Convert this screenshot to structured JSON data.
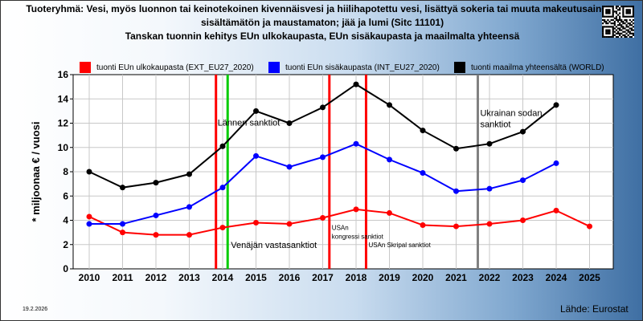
{
  "header": {
    "title_line1": "Tuoteryhmä: Vesi, myös luonnon tai keinotekoinen kivennäisvesi ja hiilihapotettu vesi, lisättyä sokeria tai muuta makeutusainetta",
    "title_line2": "sisältämätön ja maustamaton; jää ja lumi (Sitc 11101)",
    "title_line3": "Tanskan tuonnin kehitys EUn ulkokaupasta, EUn sisäkaupasta ja maailmalta yhteensä"
  },
  "legend": [
    {
      "label": "tuonti EUn ulkokaupasta (EXT_EU27_2020)",
      "color": "#ff0000"
    },
    {
      "label": "tuonti EUn sisäkaupasta (INT_EU27_2020)",
      "color": "#0000ff"
    },
    {
      "label": "tuonti maailma yhteensältä (WORLD)",
      "color": "#000000"
    }
  ],
  "footer": {
    "date": "19.2.2026",
    "source": "Lähde: Eurostat"
  },
  "chart_data": {
    "type": "line",
    "ylabel": "* miljoonaa € / vuosi",
    "ylim": [
      0,
      16
    ],
    "yticks": [
      0,
      2,
      4,
      6,
      8,
      10,
      12,
      14,
      16
    ],
    "categories": [
      "2010",
      "2011",
      "2012",
      "2013",
      "2014",
      "2015",
      "2016",
      "2017",
      "2018",
      "2019",
      "2020",
      "2021",
      "2022",
      "2023",
      "2024",
      "2025"
    ],
    "grid": true,
    "legend_position": "top",
    "series": [
      {
        "name": "tuonti EUn ulkokaupasta (EXT_EU27_2020)",
        "color": "#ff0000",
        "values": [
          4.3,
          3.0,
          2.8,
          2.8,
          3.4,
          3.8,
          3.7,
          4.2,
          4.9,
          4.6,
          3.6,
          3.5,
          3.7,
          4.0,
          4.8,
          3.5
        ]
      },
      {
        "name": "tuonti EUn sisäkaupasta (INT_EU27_2020)",
        "color": "#0000ff",
        "values": [
          3.7,
          3.7,
          4.4,
          5.1,
          6.7,
          9.3,
          8.4,
          9.2,
          10.3,
          9.0,
          7.9,
          6.4,
          6.6,
          7.3,
          8.7,
          null
        ]
      },
      {
        "name": "tuonti maailma yhteensältä (WORLD)",
        "color": "#000000",
        "values": [
          8.0,
          6.7,
          7.1,
          7.8,
          10.1,
          13.0,
          12.0,
          13.3,
          15.2,
          13.5,
          11.4,
          9.9,
          10.3,
          11.3,
          13.5,
          null
        ]
      }
    ],
    "events": [
      {
        "x": 2013.8,
        "color": "#ff0000",
        "label": "Lännen sanktiot",
        "label_y": 11.8
      },
      {
        "x": 2014.15,
        "color": "#00cc00",
        "label": "Venäjän vastasanktiot",
        "label_y": 2.0
      },
      {
        "x": 2017.2,
        "color": "#ff0000",
        "label": "USAn kongressi sanktiot",
        "label_y": 3.2
      },
      {
        "x": 2018.3,
        "color": "#ff0000",
        "label": "USAn Skripal sanktiot",
        "label_y": 1.8
      },
      {
        "x": 2021.65,
        "color": "#808080",
        "label": "Ukrainan sodan sanktiot",
        "label_y": 12.6
      }
    ]
  }
}
